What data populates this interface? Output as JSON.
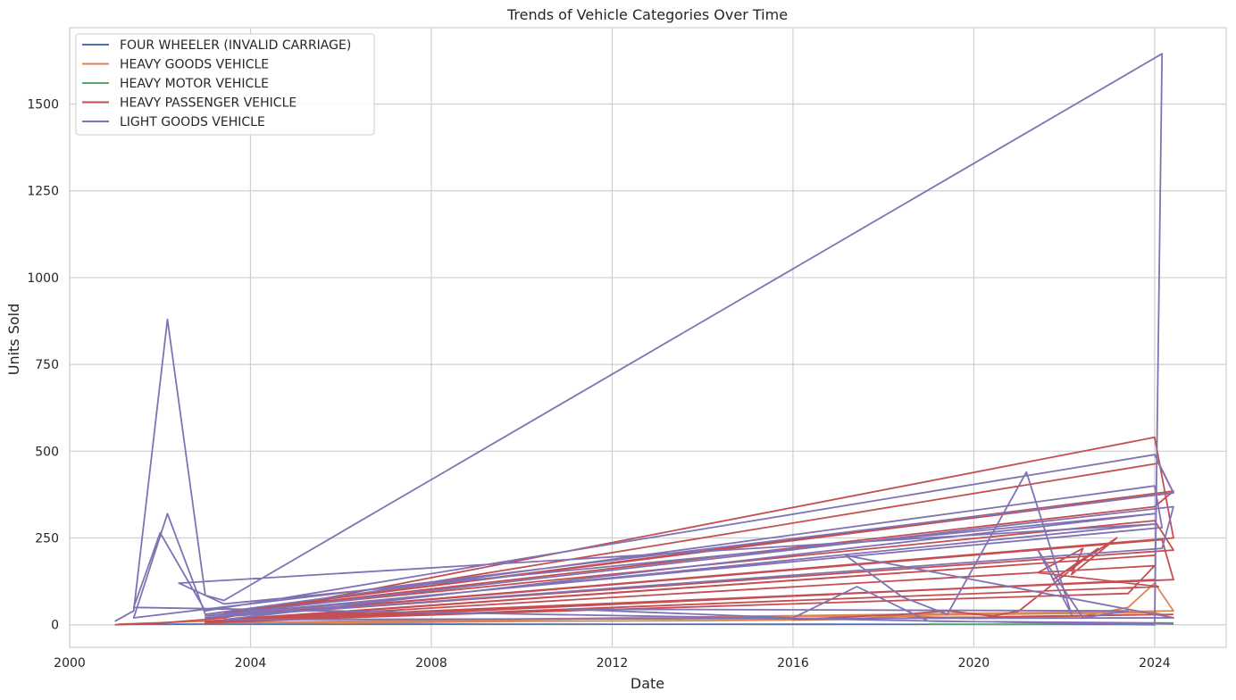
{
  "chart_data": {
    "type": "line",
    "title": "Trends of Vehicle Categories Over Time",
    "xlabel": "Date",
    "ylabel": "Units Sold",
    "xlim": [
      "2000-01-01",
      "2025-08-01"
    ],
    "ylim": [
      -65,
      1720
    ],
    "x_ticks": [
      "2000",
      "2004",
      "2008",
      "2012",
      "2016",
      "2020",
      "2024"
    ],
    "y_ticks": [
      "0",
      "250",
      "500",
      "750",
      "1000",
      "1250",
      "1500"
    ],
    "x_tick_values": [
      "2000-01-01",
      "2004-01-01",
      "2008-01-01",
      "2012-01-01",
      "2016-01-01",
      "2020-01-01",
      "2024-01-01"
    ],
    "y_tick_values": [
      0,
      250,
      500,
      750,
      1000,
      1250,
      1500
    ],
    "grid": true,
    "legend_position": "top-left",
    "series": [
      {
        "name": "FOUR WHEELER (INVALID CARRIAGE)",
        "color": "#4c72b0",
        "points": [
          [
            "2001-02-01",
            1
          ],
          [
            "2003-01-01",
            2
          ],
          [
            "2023-06-01",
            1
          ],
          [
            "2024-01-01",
            0
          ]
        ]
      },
      {
        "name": "HEAVY GOODS VEHICLE",
        "color": "#dd8452",
        "points": [
          [
            "2001-02-01",
            2
          ],
          [
            "2002-01-01",
            6
          ],
          [
            "2003-01-01",
            10
          ],
          [
            "2004-01-01",
            8
          ],
          [
            "2006-01-01",
            5
          ],
          [
            "2010-01-01",
            10
          ],
          [
            "2014-01-01",
            12
          ],
          [
            "2017-01-01",
            15
          ],
          [
            "2018-06-01",
            25
          ],
          [
            "2020-01-01",
            18
          ],
          [
            "2022-06-01",
            25
          ],
          [
            "2023-06-01",
            50
          ],
          [
            "2024-01-01",
            120
          ],
          [
            "2024-06-01",
            40
          ],
          [
            "2003-01-01",
            5
          ],
          [
            "2024-01-01",
            35
          ],
          [
            "2024-06-01",
            20
          ]
        ]
      },
      {
        "name": "HEAVY MOTOR VEHICLE",
        "color": "#55a868",
        "points": [
          [
            "2019-01-01",
            2
          ],
          [
            "2021-01-01",
            1
          ],
          [
            "2022-06-01",
            3
          ],
          [
            "2023-06-01",
            5
          ],
          [
            "2024-06-01",
            2
          ]
        ]
      },
      {
        "name": "HEAVY PASSENGER VEHICLE",
        "color": "#c44e52",
        "points": [
          [
            "2001-01-01",
            0
          ],
          [
            "2002-01-01",
            5
          ],
          [
            "2003-01-01",
            15
          ],
          [
            "2003-06-01",
            20
          ],
          [
            "2024-01-01",
            540
          ],
          [
            "2024-06-01",
            250
          ],
          [
            "2003-06-01",
            25
          ],
          [
            "2024-02-01",
            465
          ],
          [
            "2024-06-01",
            380
          ],
          [
            "2003-01-01",
            30
          ],
          [
            "2024-06-01",
            385
          ],
          [
            "2024-01-01",
            340
          ],
          [
            "2003-06-01",
            35
          ],
          [
            "2024-01-01",
            300
          ],
          [
            "2024-06-01",
            215
          ],
          [
            "2003-01-01",
            20
          ],
          [
            "2024-03-01",
            245
          ],
          [
            "2024-06-01",
            130
          ],
          [
            "2003-06-01",
            15
          ],
          [
            "2024-01-01",
            200
          ],
          [
            "2003-01-01",
            10
          ],
          [
            "2024-01-01",
            170
          ],
          [
            "2023-06-01",
            90
          ],
          [
            "2003-01-01",
            8
          ],
          [
            "2024-01-01",
            130
          ],
          [
            "2003-01-01",
            5
          ],
          [
            "2024-02-01",
            110
          ],
          [
            "2021-06-01",
            150
          ],
          [
            "2022-06-01",
            220
          ],
          [
            "2022-03-01",
            145
          ],
          [
            "2023-03-01",
            250
          ],
          [
            "2021-10-01",
            130
          ],
          [
            "2022-10-01",
            220
          ],
          [
            "2021-01-01",
            40
          ],
          [
            "2020-06-01",
            25
          ],
          [
            "2019-06-01",
            40
          ],
          [
            "2018-06-01",
            30
          ],
          [
            "2016-01-01",
            15
          ],
          [
            "2024-06-01",
            30
          ]
        ]
      },
      {
        "name": "LIGHT GOODS VEHICLE",
        "color": "#8172b3",
        "points": [
          [
            "2001-01-01",
            10
          ],
          [
            "2001-06-01",
            40
          ],
          [
            "2002-03-01",
            880
          ],
          [
            "2003-01-01",
            85
          ],
          [
            "2003-06-01",
            70
          ],
          [
            "2024-03-01",
            1645
          ],
          [
            "2024-01-01",
            0
          ],
          [
            "2001-06-01",
            50
          ],
          [
            "2002-01-01",
            265
          ],
          [
            "2003-01-01",
            40
          ],
          [
            "2024-01-01",
            490
          ],
          [
            "2024-06-01",
            380
          ],
          [
            "2001-06-01",
            20
          ],
          [
            "2002-03-01",
            320
          ],
          [
            "2003-01-01",
            30
          ],
          [
            "2024-01-01",
            400
          ],
          [
            "2024-03-01",
            280
          ],
          [
            "2003-01-01",
            25
          ],
          [
            "2024-06-01",
            340
          ],
          [
            "2024-03-01",
            220
          ],
          [
            "2003-01-01",
            20
          ],
          [
            "2024-01-01",
            290
          ],
          [
            "2002-06-01",
            120
          ],
          [
            "2003-06-01",
            60
          ],
          [
            "2024-01-01",
            320
          ],
          [
            "2003-06-01",
            15
          ],
          [
            "2024-06-01",
            20
          ],
          [
            "2017-03-01",
            200
          ],
          [
            "2018-06-01",
            80
          ],
          [
            "2019-06-01",
            30
          ],
          [
            "2021-03-01",
            440
          ],
          [
            "2022-03-01",
            30
          ],
          [
            "2021-06-01",
            215
          ],
          [
            "2022-06-01",
            20
          ],
          [
            "2023-06-01",
            40
          ],
          [
            "2011-01-01",
            45
          ],
          [
            "2016-01-01",
            20
          ],
          [
            "2017-06-01",
            110
          ],
          [
            "2019-01-01",
            10
          ],
          [
            "2024-06-01",
            5
          ]
        ]
      }
    ]
  }
}
